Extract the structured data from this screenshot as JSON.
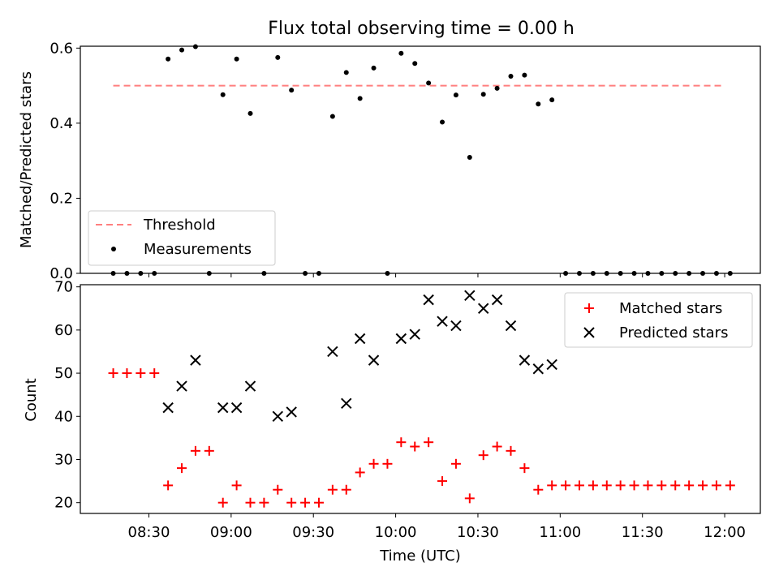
{
  "title": "Flux total observing time = 0.00 h",
  "colors": {
    "threshold": "#ff7f7f",
    "measurements": "#000000",
    "matched": "#ff0000",
    "predicted": "#000000"
  },
  "chart_data": [
    {
      "type": "scatter",
      "ylabel": "Matched/Predicted stars",
      "ylim": [
        0,
        0.605
      ],
      "yticks": [
        0.0,
        0.2,
        0.4,
        0.6
      ],
      "ytick_labels": [
        "0.0",
        "0.2",
        "0.4",
        "0.6"
      ],
      "xlim": [
        "08:05",
        "12:13"
      ],
      "legend": {
        "position": "lower-left",
        "entries": [
          "Threshold",
          "Measurements"
        ]
      },
      "threshold": {
        "name": "Threshold",
        "value": 0.5,
        "x": [
          "08:17",
          "12:00"
        ]
      },
      "series": [
        {
          "name": "Measurements",
          "marker": "dot",
          "x": [
            "08:17",
            "08:22",
            "08:27",
            "08:32",
            "08:37",
            "08:42",
            "08:47",
            "08:52",
            "08:57",
            "09:02",
            "09:07",
            "09:12",
            "09:17",
            "09:22",
            "09:27",
            "09:32",
            "09:37",
            "09:42",
            "09:47",
            "09:52",
            "09:57",
            "10:02",
            "10:07",
            "10:12",
            "10:17",
            "10:22",
            "10:27",
            "10:32",
            "10:37",
            "10:42",
            "10:47",
            "10:52",
            "10:57",
            "11:02",
            "11:07",
            "11:12",
            "11:17",
            "11:22",
            "11:27",
            "11:32",
            "11:37",
            "11:42",
            "11:47",
            "11:52",
            "11:57",
            "12:02"
          ],
          "y": [
            0,
            0,
            0,
            0,
            0.571,
            0.595,
            0.604,
            0,
            0.476,
            0.571,
            0.426,
            0,
            0.575,
            0.488,
            0,
            0,
            0.418,
            0.535,
            0.466,
            0.547,
            0,
            0.586,
            0.559,
            0.507,
            0.403,
            0.475,
            0.309,
            0.477,
            0.493,
            0.525,
            0.528,
            0.451,
            0.462,
            0,
            0,
            0,
            0,
            0,
            0,
            0,
            0,
            0,
            0,
            0,
            0,
            0
          ]
        }
      ]
    },
    {
      "type": "scatter",
      "xlabel": "Time (UTC)",
      "ylabel": "Count",
      "ylim": [
        17.5,
        70.5
      ],
      "yticks": [
        20,
        30,
        40,
        50,
        60,
        70
      ],
      "ytick_labels": [
        "20",
        "30",
        "40",
        "50",
        "60",
        "70"
      ],
      "xlim": [
        "08:05",
        "12:13"
      ],
      "xticks": [
        "08:30",
        "09:00",
        "09:30",
        "10:00",
        "10:30",
        "11:00",
        "11:30",
        "12:00"
      ],
      "legend": {
        "position": "upper-right",
        "entries": [
          "Matched stars",
          "Predicted stars"
        ]
      },
      "series": [
        {
          "name": "Matched stars",
          "marker": "plus",
          "x": [
            "08:17",
            "08:22",
            "08:27",
            "08:32",
            "08:37",
            "08:42",
            "08:47",
            "08:52",
            "08:57",
            "09:02",
            "09:07",
            "09:12",
            "09:17",
            "09:22",
            "09:27",
            "09:32",
            "09:37",
            "09:42",
            "09:47",
            "09:52",
            "09:57",
            "10:02",
            "10:07",
            "10:12",
            "10:17",
            "10:22",
            "10:27",
            "10:32",
            "10:37",
            "10:42",
            "10:47",
            "10:52",
            "10:57",
            "11:02",
            "11:07",
            "11:12",
            "11:17",
            "11:22",
            "11:27",
            "11:32",
            "11:37",
            "11:42",
            "11:47",
            "11:52",
            "11:57",
            "12:02"
          ],
          "y": [
            50,
            50,
            50,
            50,
            24,
            28,
            32,
            32,
            20,
            24,
            20,
            20,
            23,
            20,
            20,
            20,
            23,
            23,
            27,
            29,
            29,
            34,
            33,
            34,
            25,
            29,
            21,
            31,
            33,
            32,
            28,
            23,
            24,
            24,
            24,
            24,
            24,
            24,
            24,
            24,
            24,
            24,
            24,
            24,
            24,
            24
          ]
        },
        {
          "name": "Predicted stars",
          "marker": "x",
          "x": [
            "08:37",
            "08:42",
            "08:47",
            "08:57",
            "09:02",
            "09:07",
            "09:17",
            "09:22",
            "09:37",
            "09:42",
            "09:47",
            "09:52",
            "10:02",
            "10:07",
            "10:12",
            "10:17",
            "10:22",
            "10:27",
            "10:32",
            "10:37",
            "10:42",
            "10:47",
            "10:52",
            "10:57"
          ],
          "y": [
            42,
            47,
            53,
            42,
            42,
            47,
            40,
            41,
            55,
            43,
            58,
            53,
            58,
            59,
            67,
            62,
            61,
            68,
            65,
            67,
            61,
            53,
            51,
            52
          ]
        }
      ]
    }
  ]
}
